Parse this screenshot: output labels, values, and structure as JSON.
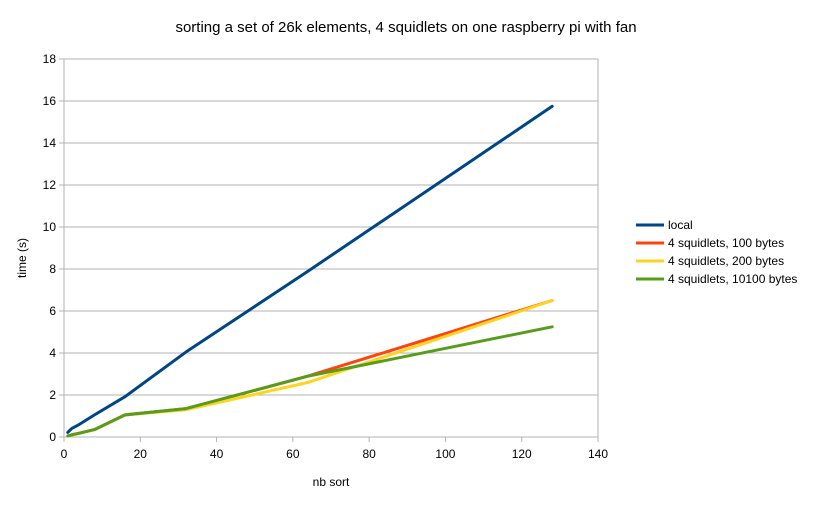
{
  "chart_data": {
    "type": "line",
    "title": "sorting a set of 26k elements, 4 squidlets on one raspberry pi with fan",
    "xlabel": "nb sort",
    "ylabel": "time (s)",
    "xlim": [
      0,
      140
    ],
    "ylim": [
      0,
      18
    ],
    "x_ticks": [
      "0",
      "20",
      "40",
      "60",
      "80",
      "100",
      "120",
      "140"
    ],
    "y_ticks": [
      "0",
      "2",
      "4",
      "6",
      "8",
      "10",
      "12",
      "14",
      "16",
      "18"
    ],
    "grid": "horizontal",
    "legend_position": "right",
    "series": [
      {
        "name": "local",
        "color": "#004586",
        "points": [
          [
            1,
            0.22
          ],
          [
            2,
            0.4
          ],
          [
            4,
            0.6
          ],
          [
            8,
            1.05
          ],
          [
            16,
            1.92
          ],
          [
            32,
            4.05
          ],
          [
            64,
            7.9
          ],
          [
            128,
            15.75
          ]
        ]
      },
      {
        "name": "4 squidlets, 100 bytes",
        "color": "#ff420e",
        "points": [
          [
            1,
            0.05
          ],
          [
            2,
            0.1
          ],
          [
            4,
            0.18
          ],
          [
            8,
            0.35
          ],
          [
            16,
            1.05
          ],
          [
            32,
            1.35
          ],
          [
            64,
            2.9
          ],
          [
            128,
            6.5
          ]
        ]
      },
      {
        "name": "4 squidlets, 200 bytes",
        "color": "#ffd320",
        "points": [
          [
            1,
            0.05
          ],
          [
            2,
            0.1
          ],
          [
            4,
            0.18
          ],
          [
            8,
            0.35
          ],
          [
            16,
            1.05
          ],
          [
            32,
            1.3
          ],
          [
            64,
            2.6
          ],
          [
            128,
            6.5
          ]
        ]
      },
      {
        "name": "4 squidlets, 10100 bytes",
        "color": "#579d1c",
        "points": [
          [
            1,
            0.05
          ],
          [
            2,
            0.1
          ],
          [
            4,
            0.18
          ],
          [
            8,
            0.35
          ],
          [
            16,
            1.05
          ],
          [
            32,
            1.35
          ],
          [
            64,
            2.9
          ],
          [
            128,
            5.25
          ]
        ]
      }
    ]
  }
}
